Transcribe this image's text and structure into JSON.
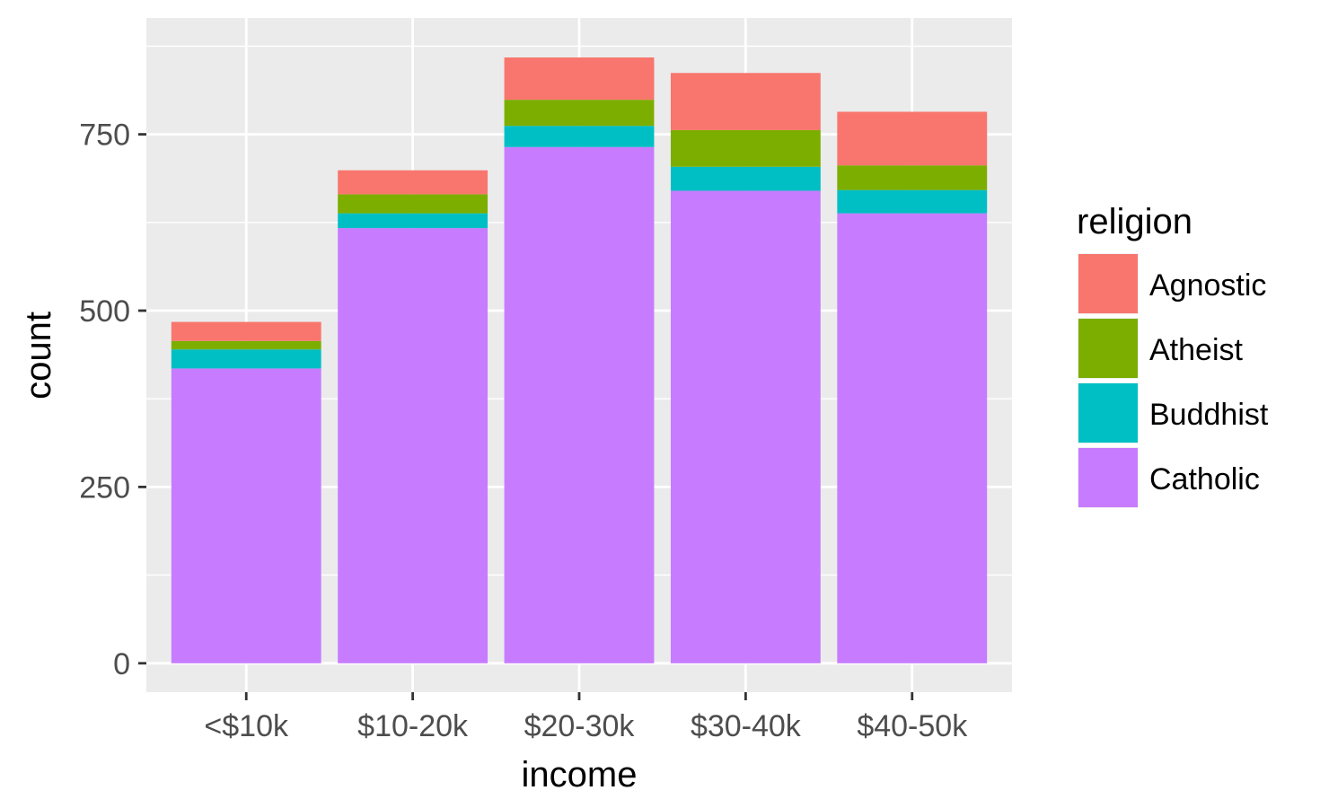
{
  "chart_data": {
    "type": "bar",
    "stacked": true,
    "xlabel": "income",
    "ylabel": "count",
    "categories": [
      "<$10k",
      "$10-20k",
      "$20-30k",
      "$30-40k",
      "$40-50k"
    ],
    "ylim": [
      -41,
      915
    ],
    "yticks": [
      0,
      250,
      500,
      750
    ],
    "ytick_labels": [
      "0",
      "250",
      "500",
      "750"
    ],
    "grid": true,
    "legend": {
      "title": "religion",
      "position": "right"
    },
    "series": [
      {
        "name": "Catholic",
        "color": "#C77CFF",
        "values": [
          418,
          617,
          732,
          670,
          638
        ]
      },
      {
        "name": "Buddhist",
        "color": "#00BFC4",
        "values": [
          27,
          21,
          30,
          34,
          33
        ]
      },
      {
        "name": "Atheist",
        "color": "#7CAE00",
        "values": [
          12,
          27,
          37,
          52,
          35
        ]
      },
      {
        "name": "Agnostic",
        "color": "#F8766D",
        "values": [
          27,
          34,
          60,
          81,
          76
        ]
      }
    ],
    "colors": {
      "panel_background": "#EBEBEB",
      "grid_line": "#FFFFFF",
      "tick_mark": "#333333",
      "tick_text": "#4D4D4D"
    }
  }
}
